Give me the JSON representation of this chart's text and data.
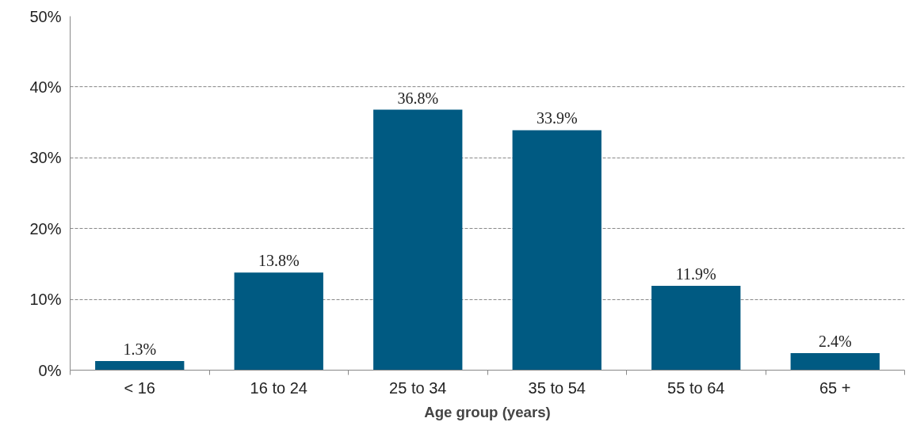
{
  "chart_data": {
    "type": "bar",
    "xlabel": "Age group (years)",
    "categories": [
      "< 16",
      "16 to 24",
      "25 to 34",
      "35 to 54",
      "55 to 64",
      "65 +"
    ],
    "values": [
      1.3,
      13.8,
      36.8,
      33.9,
      11.9,
      2.4
    ],
    "value_labels": [
      "1.3%",
      "13.8%",
      "36.8%",
      "33.9%",
      "11.9%",
      "2.4%"
    ],
    "color": "#005a82",
    "ylim": [
      0,
      50
    ],
    "yticks": [
      {
        "value": 0,
        "label": "0%"
      },
      {
        "value": 10,
        "label": "10%"
      },
      {
        "value": 20,
        "label": "20%"
      },
      {
        "value": 30,
        "label": "30%"
      },
      {
        "value": 40,
        "label": "40%"
      },
      {
        "value": 50,
        "label": "50%"
      }
    ],
    "grid": "y",
    "line_style": "dashed"
  }
}
